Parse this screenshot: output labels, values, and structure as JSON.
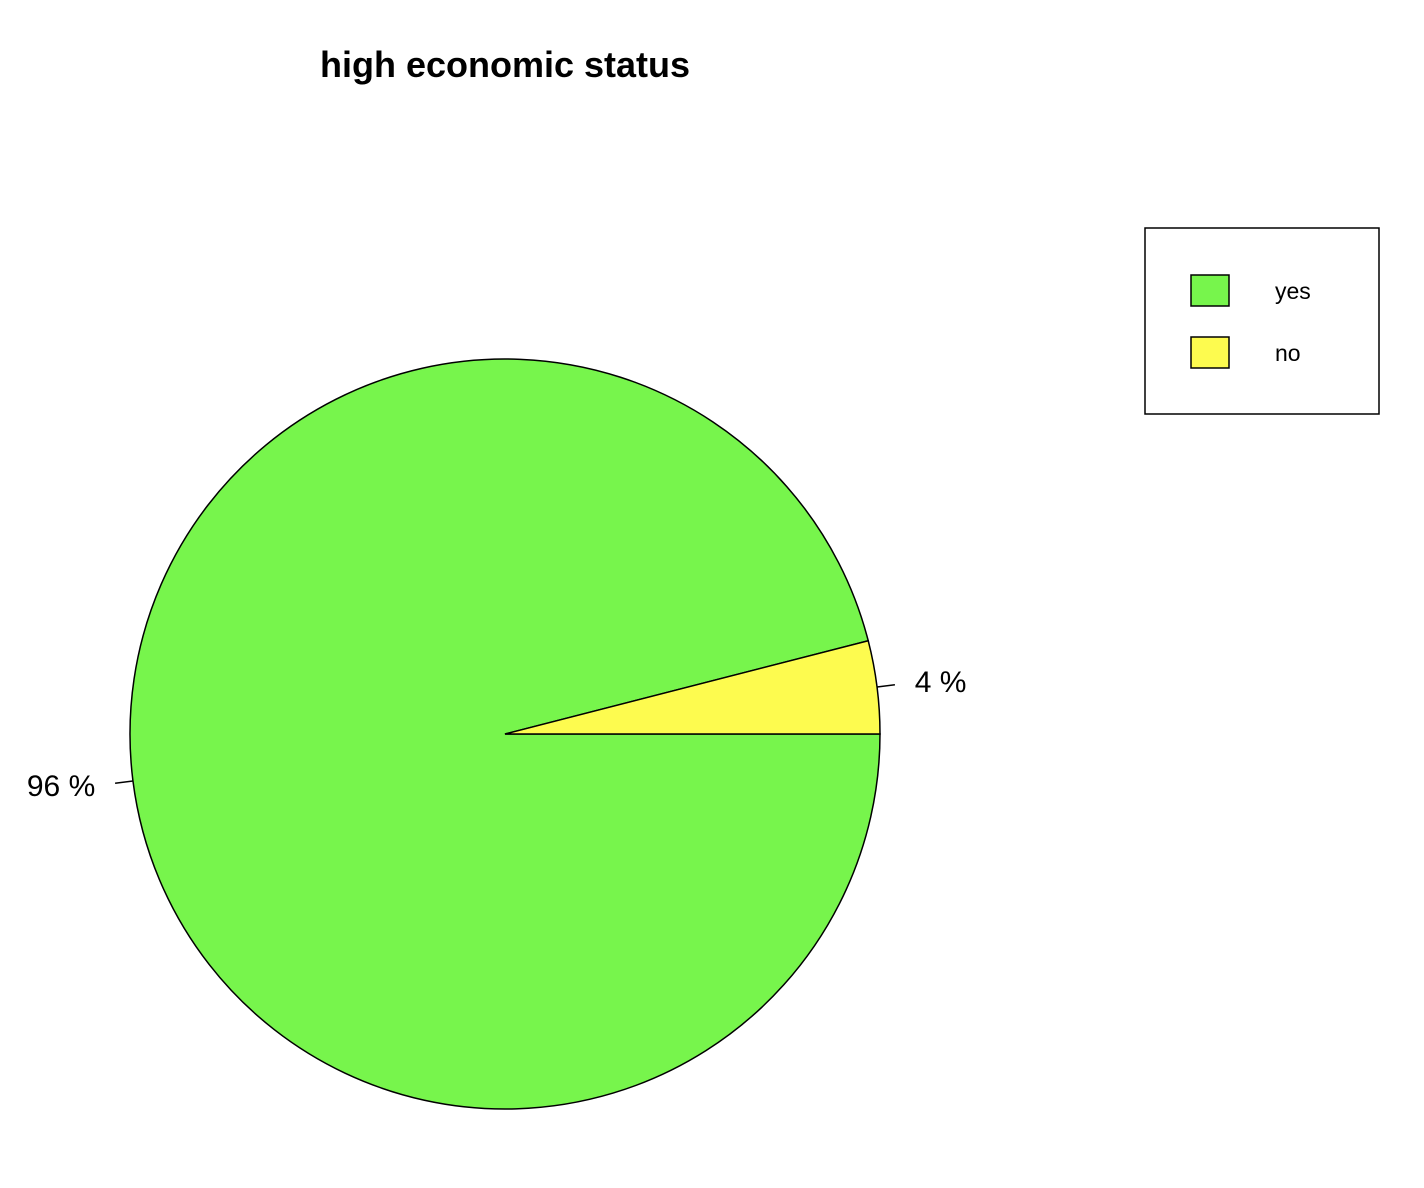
{
  "chart_data": {
    "type": "pie",
    "title": "high economic status",
    "categories": [
      "yes",
      "no"
    ],
    "values": [
      96,
      4
    ],
    "labels": [
      "96 %",
      "4 %"
    ],
    "colors": [
      "#77f54c",
      "#fdfb4f"
    ],
    "start_angle_deg": 0,
    "direction": "clockwise",
    "legend": {
      "placement": "top-right",
      "entries": [
        "yes",
        "no"
      ]
    }
  }
}
